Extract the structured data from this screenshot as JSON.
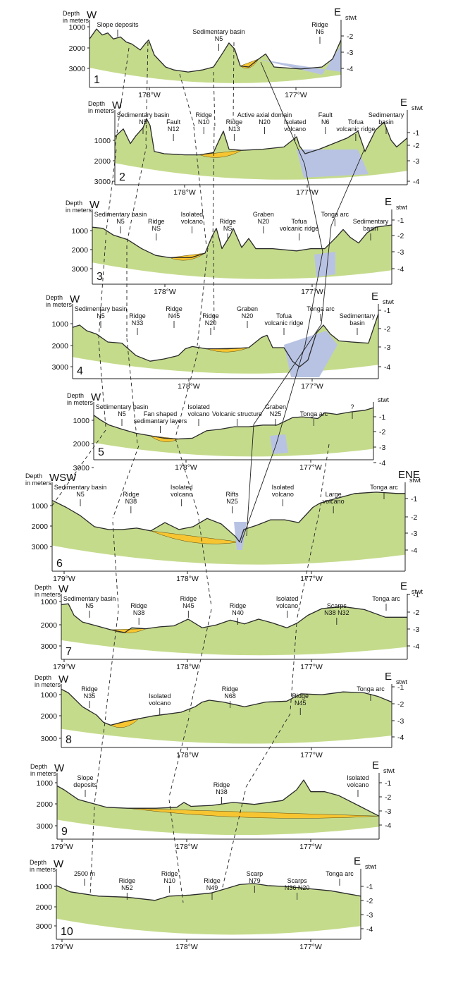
{
  "figure": {
    "units": {
      "depth": "Depth in meters",
      "twt": "stwt"
    },
    "panels": [
      {
        "id": "1",
        "left": "W",
        "right": "E",
        "depth_ticks": [
          "1000",
          "2000",
          "3000"
        ],
        "twt_ticks": [
          "2",
          "3",
          "4"
        ],
        "lon_ticks": [
          "178°W",
          "177°W"
        ],
        "labels": [
          {
            "key": "slope",
            "text": [
              "Slope deposits"
            ]
          },
          {
            "key": "basin",
            "text": [
              "Sedimentary basin",
              "N5"
            ]
          },
          {
            "key": "ridge",
            "text": [
              "Ridge",
              "N6"
            ]
          }
        ]
      },
      {
        "id": "2",
        "left": "W",
        "right": "E",
        "depth_ticks": [
          "1000",
          "2000",
          "3000"
        ],
        "twt_ticks": [
          "1",
          "2",
          "3",
          "4"
        ],
        "lon_ticks": [
          "178°W",
          "177°W"
        ],
        "labels": [
          {
            "key": "basin",
            "text": [
              "Sedimentary basin",
              "N5"
            ]
          },
          {
            "key": "fault12",
            "text": [
              "Fault",
              "N12"
            ]
          },
          {
            "key": "ridge10",
            "text": [
              "Ridge",
              "N10"
            ]
          },
          {
            "key": "ridge13",
            "text": [
              "Ridge",
              "N13"
            ]
          },
          {
            "key": "axial",
            "text": [
              "Active axial domain",
              "N20"
            ]
          },
          {
            "key": "isovol",
            "text": [
              "Isolated",
              "volcano"
            ]
          },
          {
            "key": "fault6",
            "text": [
              "Fault",
              "N6"
            ]
          },
          {
            "key": "tofua",
            "text": [
              "Tofua",
              "volcanic ridge"
            ]
          },
          {
            "key": "sedbasin",
            "text": [
              "Sedimentary",
              "basin"
            ]
          }
        ]
      },
      {
        "id": "3",
        "left": "W",
        "right": "E",
        "depth_ticks": [
          "1000",
          "2000",
          "3000"
        ],
        "twt_ticks": [
          "1",
          "2",
          "3",
          "4"
        ],
        "lon_ticks": [
          "178°W",
          "177°W"
        ],
        "labels": [
          {
            "key": "basin",
            "text": [
              "Sedimentary basin",
              "N5"
            ]
          },
          {
            "key": "ridge1",
            "text": [
              "Ridge",
              "NS"
            ]
          },
          {
            "key": "isovol",
            "text": [
              "Isolated",
              "volcano"
            ]
          },
          {
            "key": "ridge2",
            "text": [
              "Ridge",
              "NS"
            ]
          },
          {
            "key": "graben",
            "text": [
              "Graben",
              "N20"
            ]
          },
          {
            "key": "tofua",
            "text": [
              "Tofua",
              "volcanic ridge"
            ]
          },
          {
            "key": "tonga",
            "text": [
              "Tonga arc"
            ]
          },
          {
            "key": "sedbasin",
            "text": [
              "Sedimentary",
              "basin"
            ]
          }
        ]
      },
      {
        "id": "4",
        "left": "W",
        "right": "E",
        "depth_ticks": [
          "1000",
          "2000",
          "3000"
        ],
        "twt_ticks": [
          "1",
          "2",
          "3",
          "4"
        ],
        "lon_ticks": [
          "178°W",
          "177°W"
        ],
        "labels": [
          {
            "key": "basin",
            "text": [
              "Sedimentary basin",
              "N5"
            ]
          },
          {
            "key": "ridge33",
            "text": [
              "Ridge",
              "N33"
            ]
          },
          {
            "key": "ridge45",
            "text": [
              "Ridge",
              "N45"
            ]
          },
          {
            "key": "ridge20",
            "text": [
              "Ridge",
              "N20"
            ]
          },
          {
            "key": "graben",
            "text": [
              "Graben",
              "N20"
            ]
          },
          {
            "key": "tofua",
            "text": [
              "Tofua",
              "volcanic ridge"
            ]
          },
          {
            "key": "tonga",
            "text": [
              "Tonga arc"
            ]
          },
          {
            "key": "sedbasin",
            "text": [
              "Sedimentary",
              "basin"
            ]
          }
        ]
      },
      {
        "id": "5",
        "left": "W",
        "right": "",
        "depth_ticks": [
          "1000",
          "2000",
          "3000"
        ],
        "twt_ticks": [
          "1",
          "2",
          "3",
          "4"
        ],
        "lon_ticks": [
          "178°W",
          "177°W"
        ],
        "labels": [
          {
            "key": "basin",
            "text": [
              "Sedimentary basin",
              "N5"
            ]
          },
          {
            "key": "fan",
            "text": [
              "Fan shaped",
              "sedimantary layers"
            ]
          },
          {
            "key": "isovol",
            "text": [
              "Isolated",
              "volcano"
            ]
          },
          {
            "key": "volstruct",
            "text": [
              "Volcanic structure"
            ]
          },
          {
            "key": "graben",
            "text": [
              "Graben",
              "N25"
            ]
          },
          {
            "key": "tonga",
            "text": [
              "Tonga arc"
            ]
          },
          {
            "key": "q",
            "text": [
              "?"
            ]
          }
        ]
      },
      {
        "id": "6",
        "left": "WSW",
        "right": "ENE",
        "depth_ticks": [
          "1000",
          "2000",
          "3000"
        ],
        "twt_ticks": [
          "1",
          "2",
          "3",
          "4"
        ],
        "lon_ticks": [
          "179°W",
          "178°W",
          "177°W"
        ],
        "labels": [
          {
            "key": "basin",
            "text": [
              "Sedimentary basin",
              "N5"
            ]
          },
          {
            "key": "ridge38",
            "text": [
              "Ridge",
              "N38"
            ]
          },
          {
            "key": "isovol1",
            "text": [
              "Isolated",
              "volcano"
            ]
          },
          {
            "key": "rifts",
            "text": [
              "Rifts",
              "N25"
            ]
          },
          {
            "key": "isovol2",
            "text": [
              "Isolated",
              "volcano"
            ]
          },
          {
            "key": "large",
            "text": [
              "Large",
              "volcano"
            ]
          },
          {
            "key": "tonga",
            "text": [
              "Tonga arc"
            ]
          }
        ]
      },
      {
        "id": "7",
        "left": "W",
        "right": "E",
        "depth_ticks": [
          "1000",
          "2000",
          "3000"
        ],
        "twt_ticks": [
          "1",
          "2",
          "3",
          "4"
        ],
        "lon_ticks": [
          "179°W",
          "178°W",
          "177°W"
        ],
        "labels": [
          {
            "key": "basin",
            "text": [
              "Sedimentary basin",
              "N5"
            ]
          },
          {
            "key": "ridge38",
            "text": [
              "Ridge",
              "N38"
            ]
          },
          {
            "key": "ridge45",
            "text": [
              "Ridge",
              "N45"
            ]
          },
          {
            "key": "ridge40",
            "text": [
              "Ridge",
              "N40"
            ]
          },
          {
            "key": "isovol",
            "text": [
              "Isolated",
              "volcano"
            ]
          },
          {
            "key": "scarps",
            "text": [
              "Scarps",
              "N38  N32"
            ]
          },
          {
            "key": "tonga",
            "text": [
              "Tonga arc"
            ]
          }
        ]
      },
      {
        "id": "8",
        "left": "W",
        "right": "E",
        "depth_ticks": [
          "1000",
          "2000",
          "3000"
        ],
        "twt_ticks": [
          "1",
          "2",
          "3",
          "4"
        ],
        "lon_ticks": [
          "178°W",
          "177°W"
        ],
        "labels": [
          {
            "key": "ridge35",
            "text": [
              "Ridge",
              "N35"
            ]
          },
          {
            "key": "isovol",
            "text": [
              "Isolated",
              "volcano"
            ]
          },
          {
            "key": "ridge68",
            "text": [
              "Ridge",
              "N68"
            ]
          },
          {
            "key": "ridge45",
            "text": [
              "Ridge",
              "N45"
            ]
          },
          {
            "key": "tonga",
            "text": [
              "Tonga arc"
            ]
          }
        ]
      },
      {
        "id": "9",
        "left": "W",
        "right": "E",
        "depth_ticks": [
          "1000",
          "2000",
          "3000"
        ],
        "twt_ticks": [
          "1",
          "2",
          "3",
          "4"
        ],
        "lon_ticks": [
          "179°W",
          "178°W",
          "177°W"
        ],
        "labels": [
          {
            "key": "slope",
            "text": [
              "Slope",
              "deposits"
            ]
          },
          {
            "key": "ridge38",
            "text": [
              "Ridge",
              "N38"
            ]
          },
          {
            "key": "isovol",
            "text": [
              "Isolated",
              "volcano"
            ]
          }
        ]
      },
      {
        "id": "10",
        "left": "W",
        "right": "E",
        "depth_ticks": [
          "1000",
          "2000",
          "3000"
        ],
        "twt_ticks": [
          "1",
          "2",
          "3",
          "4"
        ],
        "lon_ticks": [
          "179°W",
          "178°W",
          "177°W"
        ],
        "labels": [
          {
            "key": "depth2500",
            "text": [
              "2500 m"
            ]
          },
          {
            "key": "ridge52",
            "text": [
              "Ridge",
              "N52"
            ]
          },
          {
            "key": "ridge10",
            "text": [
              "Ridge",
              "N10"
            ]
          },
          {
            "key": "ridge49",
            "text": [
              "Ridge",
              "N49"
            ]
          },
          {
            "key": "scarp79",
            "text": [
              "Scarp",
              "N79"
            ]
          },
          {
            "key": "scarps",
            "text": [
              "Scarps",
              "N36  N20"
            ]
          },
          {
            "key": "tonga",
            "text": [
              "Tonga arc"
            ]
          }
        ]
      }
    ]
  }
}
